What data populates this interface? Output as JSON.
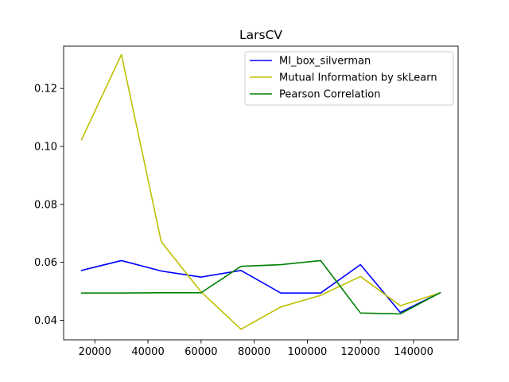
{
  "chart_data": {
    "type": "line",
    "title": "LarsCV",
    "xlabel": "",
    "ylabel": "",
    "xlim": [
      8250,
      156750
    ],
    "ylim": [
      0.03325,
      0.1346
    ],
    "xticks": [
      20000,
      40000,
      60000,
      80000,
      100000,
      120000,
      140000
    ],
    "yticks": [
      0.04,
      0.06,
      0.08,
      0.1,
      0.12
    ],
    "ytick_labels": [
      "0.04",
      "0.06",
      "0.08",
      "0.10",
      "0.12"
    ],
    "xtick_labels": [
      "20000",
      "40000",
      "60000",
      "80000",
      "100000",
      "120000",
      "140000"
    ],
    "grid": false,
    "legend_position": "top-right",
    "x": [
      15000,
      30000,
      45000,
      60000,
      75000,
      90000,
      105000,
      120000,
      135000,
      150000
    ],
    "series": [
      {
        "name": "MI_box_silverman",
        "color": "#0000ff",
        "values": [
          0.0572,
          0.0606,
          0.057,
          0.0549,
          0.0572,
          0.0494,
          0.0494,
          0.0592,
          0.0427,
          0.0495
        ]
      },
      {
        "name": "Mutual Information by skLearn",
        "color": "#bfbf00",
        "values": [
          0.1023,
          0.1317,
          0.0671,
          0.0498,
          0.0369,
          0.0446,
          0.0486,
          0.0551,
          0.045,
          0.0495
        ]
      },
      {
        "name": "Pearson Correlation",
        "color": "#008000",
        "values": [
          0.0494,
          0.0494,
          0.0495,
          0.0495,
          0.0586,
          0.0592,
          0.0606,
          0.0425,
          0.0422,
          0.0495
        ]
      }
    ]
  }
}
